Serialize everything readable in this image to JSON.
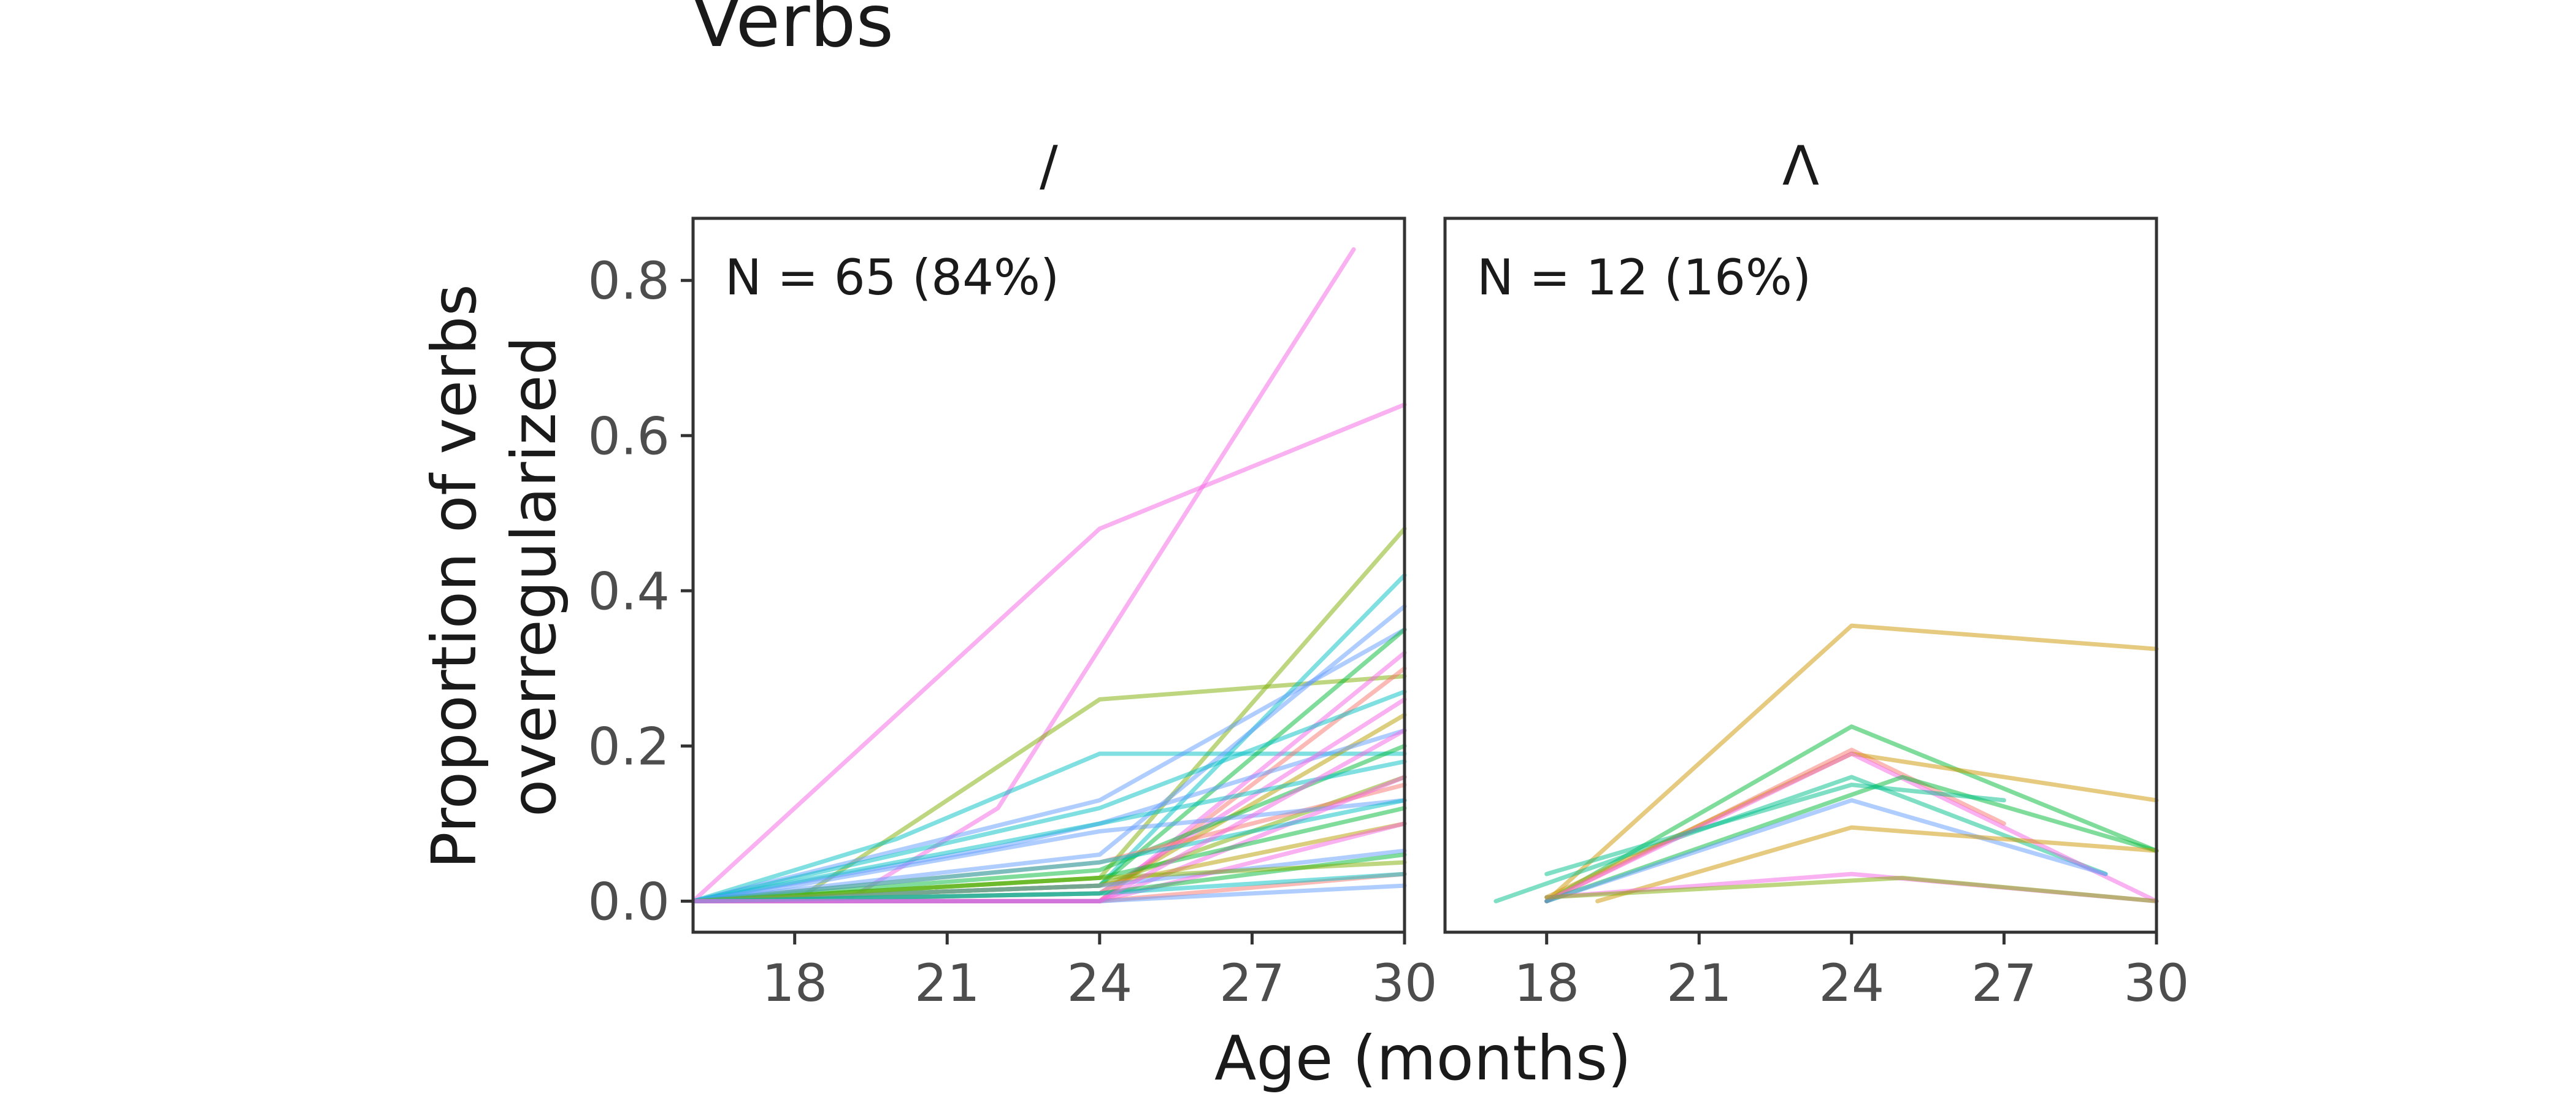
{
  "chart_data": {
    "type": "line",
    "title": "Verbs",
    "xlabel": "Age (months)",
    "ylabel_lines": [
      "Proportion of verbs",
      "overregularized"
    ],
    "xlim": [
      16,
      30
    ],
    "ylim": [
      -0.04,
      0.88
    ],
    "xticks": [
      18,
      21,
      24,
      27,
      30
    ],
    "yticks": [
      0.0,
      0.2,
      0.4,
      0.6,
      0.8
    ],
    "ytick_labels": [
      "0.0",
      "0.2",
      "0.4",
      "0.6",
      "0.8"
    ],
    "grid": false,
    "legend": "none",
    "panels": [
      {
        "strip": "/",
        "annotation": "N = 65 (84%)",
        "series": [
          {
            "color": "#f564e3",
            "x": [
              16,
              24,
              30
            ],
            "y": [
              0,
              0.48,
              0.64
            ]
          },
          {
            "color": "#f564e3",
            "x": [
              16,
              19,
              22,
              29
            ],
            "y": [
              0,
              0,
              0.12,
              0.84
            ]
          },
          {
            "color": "#7cae00",
            "x": [
              16,
              18,
              24,
              30
            ],
            "y": [
              0,
              0,
              0.26,
              0.29
            ]
          },
          {
            "color": "#7cae00",
            "x": [
              16,
              24,
              30
            ],
            "y": [
              0,
              0.03,
              0.48
            ]
          },
          {
            "color": "#00bfc4",
            "x": [
              16,
              20,
              24,
              30
            ],
            "y": [
              0,
              0.08,
              0.19,
              0.19
            ]
          },
          {
            "color": "#00bfc4",
            "x": [
              16,
              24,
              30
            ],
            "y": [
              0,
              0.02,
              0.42
            ]
          },
          {
            "color": "#619cff",
            "x": [
              16,
              24,
              30
            ],
            "y": [
              0,
              0.06,
              0.38
            ]
          },
          {
            "color": "#619cff",
            "x": [
              16,
              24,
              30
            ],
            "y": [
              0,
              0.13,
              0.35
            ]
          },
          {
            "color": "#f564e3",
            "x": [
              16,
              24,
              30
            ],
            "y": [
              0,
              0.0,
              0.32
            ]
          },
          {
            "color": "#00ba38",
            "x": [
              16,
              24,
              30
            ],
            "y": [
              0,
              0.02,
              0.35
            ]
          },
          {
            "color": "#f8766d",
            "x": [
              16,
              24,
              30
            ],
            "y": [
              0,
              0.0,
              0.3
            ]
          },
          {
            "color": "#00bfc4",
            "x": [
              16,
              18,
              24,
              30
            ],
            "y": [
              0,
              0.03,
              0.12,
              0.27
            ]
          },
          {
            "color": "#b79f00",
            "x": [
              16,
              24,
              30
            ],
            "y": [
              0,
              0.01,
              0.24
            ]
          },
          {
            "color": "#619cff",
            "x": [
              16,
              22,
              24,
              30
            ],
            "y": [
              0,
              0.07,
              0.1,
              0.22
            ]
          },
          {
            "color": "#f564e3",
            "x": [
              16,
              24,
              30
            ],
            "y": [
              0,
              0.01,
              0.26
            ]
          },
          {
            "color": "#00ba38",
            "x": [
              16,
              24,
              30
            ],
            "y": [
              0,
              0.04,
              0.2
            ]
          },
          {
            "color": "#00bfc4",
            "x": [
              16,
              20,
              24,
              30
            ],
            "y": [
              0,
              0.05,
              0.1,
              0.18
            ]
          },
          {
            "color": "#7cae00",
            "x": [
              16,
              24,
              30
            ],
            "y": [
              0,
              0.02,
              0.16
            ]
          },
          {
            "color": "#f8766d",
            "x": [
              16,
              24,
              30
            ],
            "y": [
              0,
              0.05,
              0.15
            ]
          },
          {
            "color": "#619cff",
            "x": [
              16,
              18,
              24,
              30
            ],
            "y": [
              0,
              0.02,
              0.09,
              0.13
            ]
          },
          {
            "color": "#f564e3",
            "x": [
              16,
              24,
              30
            ],
            "y": [
              0,
              0.0,
              0.16
            ]
          },
          {
            "color": "#00ba38",
            "x": [
              16,
              24,
              30
            ],
            "y": [
              0,
              0.03,
              0.12
            ]
          },
          {
            "color": "#b79f00",
            "x": [
              16,
              24,
              30
            ],
            "y": [
              0,
              0.02,
              0.1
            ]
          },
          {
            "color": "#00bfc4",
            "x": [
              16,
              24,
              30
            ],
            "y": [
              0,
              0.05,
              0.13
            ]
          },
          {
            "color": "#619cff",
            "x": [
              16,
              24,
              30
            ],
            "y": [
              0,
              0.02,
              0.065
            ]
          },
          {
            "color": "#f564e3",
            "x": [
              16,
              24,
              30
            ],
            "y": [
              0,
              0.0,
              0.1
            ]
          },
          {
            "color": "#00ba38",
            "x": [
              16,
              24,
              30
            ],
            "y": [
              0,
              0.01,
              0.06
            ]
          },
          {
            "color": "#7cae00",
            "x": [
              16,
              24,
              30
            ],
            "y": [
              0,
              0.03,
              0.05
            ]
          },
          {
            "color": "#f8766d",
            "x": [
              16,
              24,
              30
            ],
            "y": [
              0,
              0.0,
              0.035
            ]
          },
          {
            "color": "#00bfc4",
            "x": [
              16,
              24,
              30
            ],
            "y": [
              0,
              0.01,
              0.035
            ]
          },
          {
            "color": "#619cff",
            "x": [
              16,
              24,
              30
            ],
            "y": [
              0,
              0.0,
              0.02
            ]
          },
          {
            "color": "#f564e3",
            "x": [
              16,
              24,
              30
            ],
            "y": [
              0,
              0.0,
              0.22
            ]
          }
        ]
      },
      {
        "strip": "Λ",
        "annotation": "N = 12 (16%)",
        "series": [
          {
            "color": "#cd9600",
            "x": [
              18,
              24,
              30
            ],
            "y": [
              0,
              0.355,
              0.325
            ]
          },
          {
            "color": "#00ba38",
            "x": [
              18,
              24,
              30
            ],
            "y": [
              0,
              0.225,
              0.065
            ]
          },
          {
            "color": "#00c08b",
            "x": [
              17,
              24,
              29
            ],
            "y": [
              0,
              0.16,
              0.035
            ]
          },
          {
            "color": "#f8766d",
            "x": [
              18,
              24,
              27
            ],
            "y": [
              0,
              0.195,
              0.1
            ]
          },
          {
            "color": "#cd9600",
            "x": [
              18,
              24,
              30
            ],
            "y": [
              0.005,
              0.19,
              0.13
            ]
          },
          {
            "color": "#f564e3",
            "x": [
              18,
              24,
              30
            ],
            "y": [
              0,
              0.19,
              0
            ]
          },
          {
            "color": "#00ba38",
            "x": [
              18,
              25,
              30
            ],
            "y": [
              0,
              0.16,
              0.065
            ]
          },
          {
            "color": "#619cff",
            "x": [
              18,
              24,
              29
            ],
            "y": [
              0,
              0.13,
              0.035
            ]
          },
          {
            "color": "#00c08b",
            "x": [
              18,
              24,
              27
            ],
            "y": [
              0.035,
              0.15,
              0.13
            ]
          },
          {
            "color": "#cd9600",
            "x": [
              19,
              24,
              30
            ],
            "y": [
              0,
              0.095,
              0.065
            ]
          },
          {
            "color": "#f564e3",
            "x": [
              18,
              24,
              30
            ],
            "y": [
              0.005,
              0.035,
              0
            ]
          },
          {
            "color": "#7cae00",
            "x": [
              18,
              25,
              30
            ],
            "y": [
              0.005,
              0.03,
              0
            ]
          }
        ]
      }
    ]
  }
}
